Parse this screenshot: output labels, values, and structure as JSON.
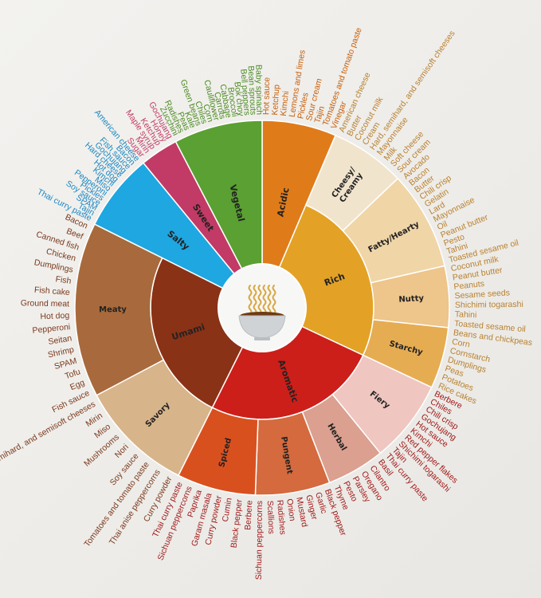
{
  "center_icon": "noodle-bowl-icon",
  "categories": [
    {
      "name": "Acidic",
      "color": "#e07b1a",
      "text": "#c65f0c",
      "span": 1,
      "subs": [
        {
          "name": "",
          "color": "#e07b1a",
          "span": 1,
          "items": [
            "Hot sauce",
            "Ketchup",
            "Kimchi",
            "Lemons and limes",
            "Pickles",
            "Sour cream",
            "Tajin",
            "Tomatoes and tomato paste",
            "Vinegar"
          ]
        }
      ]
    },
    {
      "name": "Rich",
      "color": "#e3a225",
      "text": "#b98130",
      "span": 4,
      "subs": [
        {
          "name": "Cheesy/ Creamy",
          "color": "#f1e4cd",
          "span": 1,
          "items": [
            "American cheese",
            "Butter",
            "Coconut milk",
            "Cream",
            "Hard, semihard, and semisoft cheeses",
            "Mayonnaise",
            "Milk",
            "Soft cheese",
            "Sour cream"
          ]
        },
        {
          "name": "Fatty/Hearty",
          "color": "#f0d5a7",
          "span": 1.3,
          "items": [
            "Avocado",
            "Bacon",
            "Butter",
            "Chili crisp",
            "Gelatin",
            "Lard",
            "Mayonnaise",
            "Oil",
            "Peanut butter",
            "Pesto",
            "Tahini",
            "Toasted sesame oil"
          ]
        },
        {
          "name": "Nutty",
          "color": "#eec58a",
          "span": 0.85,
          "items": [
            "Coconut milk",
            "Peanut butter",
            "Peanuts",
            "Sesame seeds",
            "Shichimi togarashi",
            "Tahini",
            "Toasted sesame oil"
          ]
        },
        {
          "name": "Starchy",
          "color": "#e6ac52",
          "span": 0.85,
          "items": [
            "Beans and chickpeas",
            "Corn",
            "Cornstarch",
            "Dumplings",
            "Peas",
            "Potatoes",
            "Rice cakes"
          ]
        }
      ]
    },
    {
      "name": "Aromatic",
      "color": "#cc1f1a",
      "text": "#a01a1a",
      "span": 4,
      "subs": [
        {
          "name": "Fiery",
          "color": "#efc6c0",
          "span": 1,
          "items": [
            "Berbere",
            "Chiles",
            "Chili crisp",
            "Gochujang",
            "Hot sauce",
            "Kimchi",
            "Red pepper flakes",
            "Shichimi togarashi",
            "Tajin",
            "Thai curry paste"
          ]
        },
        {
          "name": "Herbal",
          "color": "#dba08f",
          "span": 0.8,
          "items": [
            "Basil",
            "Cilantro",
            "Oregano",
            "Parsley",
            "Pesto",
            "Thyme"
          ]
        },
        {
          "name": "Pungent",
          "color": "#d46a3e",
          "span": 1,
          "items": [
            "Black pepper",
            "Garlic",
            "Ginger",
            "Mustard",
            "Onion",
            "Radishes",
            "Scallions",
            "Sichuan peppercorns"
          ]
        },
        {
          "name": "Spiced",
          "color": "#d9501f",
          "span": 1.1,
          "items": [
            "Berbere",
            "Black pepper",
            "Cumin",
            "Curry powder",
            "Garam masala",
            "Paprika",
            "Sichuan peppercorns",
            "Thai curry paste"
          ]
        }
      ]
    },
    {
      "name": "Umami",
      "color": "#8a3216",
      "text": "#7b3a1e",
      "span": 4,
      "subs": [
        {
          "name": "Savory",
          "color": "#d8b48a",
          "span": 1,
          "items": [
            "Curry powder",
            "Thai anise peppercorns",
            "Tomatoes and tomato paste",
            "Soy sauce",
            "Nori",
            "Mushrooms",
            "Miso",
            "Mirin",
            "Hard, semihard, and semisoft cheeses"
          ]
        },
        {
          "name": "Meaty",
          "color": "#a86a3c",
          "span": 1.3,
          "items": [
            "Fish sauce",
            "Egg",
            "Tofu",
            "SPAM",
            "Shrimp",
            "Seitan",
            "Pepperoni",
            "Hot dog",
            "Ground meat",
            "Fish cake",
            "Fish",
            "Dumplings",
            "Chicken",
            "Canned fish",
            "Beef",
            "Bacon"
          ]
        }
      ]
    },
    {
      "name": "Salty",
      "color": "#1ea7e1",
      "text": "#1a87c4",
      "span": 1,
      "subs": [
        {
          "name": "",
          "color": "#1ea7e1",
          "span": 1,
          "items": [
            "Thai curry paste",
            "Tajin",
            "SPAM",
            "Soy sauce",
            "Pickles",
            "Pepperoni",
            "Miso",
            "Kimchi",
            "Hot dog",
            "Hard cheese",
            "Gochujang",
            "Fish sauce",
            "Bacon",
            "American cheese"
          ]
        }
      ]
    },
    {
      "name": "Sweet",
      "color": "#c23a66",
      "text": "#c23a66",
      "span": 0.5,
      "subs": [
        {
          "name": "",
          "color": "#c23a66",
          "span": 1,
          "items": [
            "Sugar",
            "Mirin",
            "Maple syrup",
            "Ketchup",
            "Honey",
            "Gochujang"
          ]
        }
      ]
    },
    {
      "name": "Vegetal",
      "color": "#5aa032",
      "text": "#4b8b22",
      "span": 1.15,
      "subs": [
        {
          "name": "",
          "color": "#5aa032",
          "span": 1,
          "items": [
            "Zucchini",
            "Radishes",
            "Peas",
            "Kale",
            "Green beans",
            "Chiles",
            "Corn",
            "Cauliflower",
            "Carrots",
            "Cabbage",
            "Broccoli",
            "Bok choy",
            "Bell peppers",
            "Bean sprouts",
            "Baby spinach"
          ]
        }
      ]
    }
  ]
}
